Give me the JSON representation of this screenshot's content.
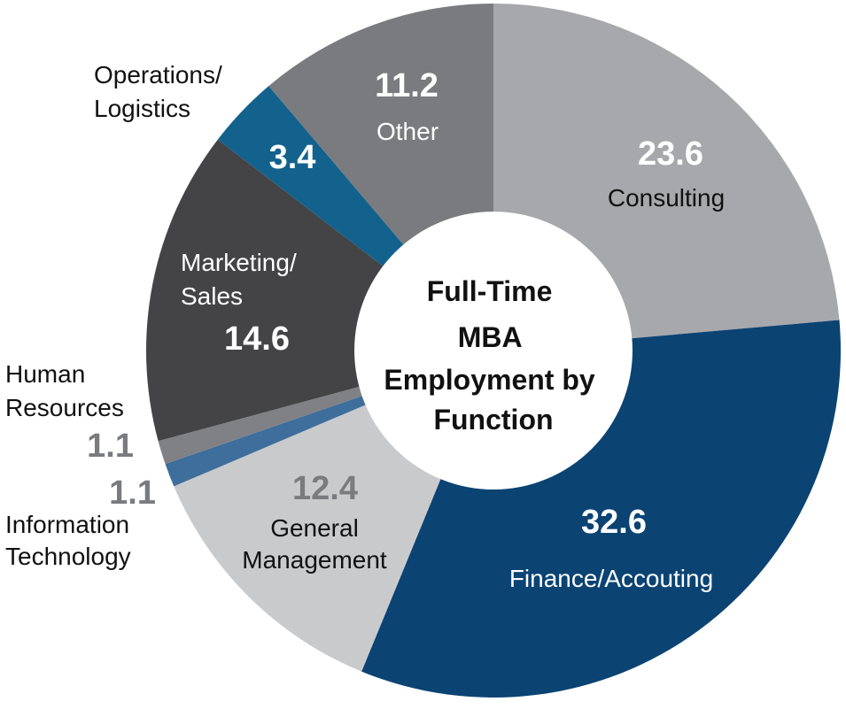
{
  "chart_data": {
    "type": "pie",
    "title": "Full-Time MBA Employment by Function",
    "title_lines": [
      "Full-Time",
      "MBA",
      "Employment by",
      "Function"
    ],
    "donut": true,
    "slices": [
      {
        "key": "consulting",
        "label_lines": [
          "Consulting"
        ],
        "value": 23.6,
        "value_text": "23.6",
        "color": "#a7a8ab",
        "value_color": "#ffffff",
        "label_color": "#111111"
      },
      {
        "key": "finance-accounting",
        "label_lines": [
          "Finance/Accouting"
        ],
        "value": 32.6,
        "value_text": "32.6",
        "color": "#0b4373",
        "value_color": "#ffffff",
        "label_color": "#ffffff"
      },
      {
        "key": "general-management",
        "label_lines": [
          "General",
          "Management"
        ],
        "value": 12.4,
        "value_text": "12.4",
        "color": "#c9cacc",
        "value_color": "#7a7b7e",
        "label_color": "#111111"
      },
      {
        "key": "information-technology",
        "label_lines": [
          "Information",
          "Technology"
        ],
        "value": 1.1,
        "value_text": "1.1",
        "color": "#3e6e9b",
        "value_color": "#7a7b7e",
        "label_color": "#111111"
      },
      {
        "key": "human-resources",
        "label_lines": [
          "Human",
          "Resources"
        ],
        "value": 1.1,
        "value_text": "1.1",
        "color": "#808184",
        "value_color": "#7a7b7e",
        "label_color": "#111111"
      },
      {
        "key": "marketing-sales",
        "label_lines": [
          "Marketing/",
          "Sales"
        ],
        "value": 14.6,
        "value_text": "14.6",
        "color": "#444446",
        "value_color": "#ffffff",
        "label_color": "#ffffff"
      },
      {
        "key": "operations-logistics",
        "label_lines": [
          "Operations/",
          "Logistics"
        ],
        "value": 3.4,
        "value_text": "3.4",
        "color": "#13628d",
        "value_color": "#ffffff",
        "label_color": "#111111"
      },
      {
        "key": "other",
        "label_lines": [
          "Other"
        ],
        "value": 11.2,
        "value_text": "11.2",
        "color": "#7a7b7e",
        "value_color": "#ffffff",
        "label_color": "#ffffff"
      }
    ]
  }
}
